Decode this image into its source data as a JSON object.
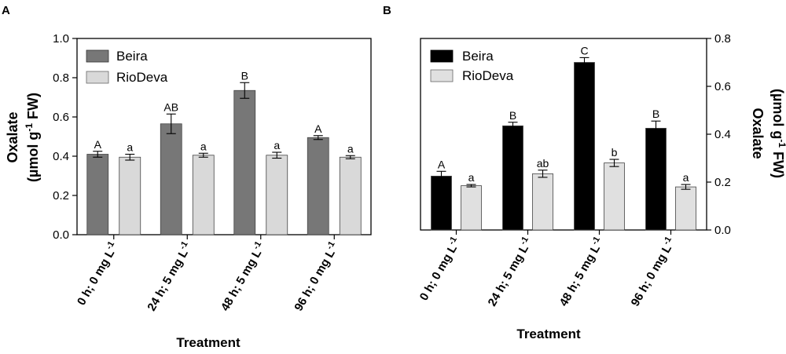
{
  "chart_data": [
    {
      "panel": "A",
      "type": "bar",
      "categories": [
        "0 h; 0 mg L",
        "24 h; 5 mg L",
        "48 h; 5 mg L",
        "96 h; 0 mg L"
      ],
      "category_superscript": "-1",
      "series": [
        {
          "name": "Beira",
          "color": "#777777",
          "values": [
            0.41,
            0.565,
            0.735,
            0.495
          ],
          "errors": [
            0.015,
            0.05,
            0.04,
            0.01
          ],
          "letters": [
            "A",
            "AB",
            "B",
            "A"
          ]
        },
        {
          "name": "RioDeva",
          "color": "#d9d9d9",
          "values": [
            0.395,
            0.405,
            0.405,
            0.395
          ],
          "errors": [
            0.015,
            0.01,
            0.015,
            0.008
          ],
          "letters": [
            "a",
            "a",
            "a",
            "a"
          ]
        }
      ],
      "ylim": [
        0,
        1.0
      ],
      "yticks": [
        "0.0",
        "0.2",
        "0.4",
        "0.6",
        "0.8",
        "1.0"
      ],
      "xlabel": "Treatment",
      "ylabel_line1": "Oxalate",
      "ylabel_line2_pre": "(µmol g",
      "ylabel_line2_sup": "-1",
      "ylabel_line2_post": " FW)",
      "legend": "top-left"
    },
    {
      "panel": "B",
      "type": "bar",
      "categories": [
        "0 h; 0 mg L",
        "24 h; 5 mg L",
        "48 h; 5 mg L",
        "96 h; 0 mg L"
      ],
      "category_superscript": "-1",
      "series": [
        {
          "name": "Beira",
          "color": "#000000",
          "values": [
            0.225,
            0.435,
            0.7,
            0.425
          ],
          "errors": [
            0.02,
            0.015,
            0.02,
            0.03
          ],
          "letters": [
            "A",
            "B",
            "C",
            "B"
          ]
        },
        {
          "name": "RioDeva",
          "color": "#e0e0e0",
          "values": [
            0.185,
            0.235,
            0.28,
            0.18
          ],
          "errors": [
            0.005,
            0.015,
            0.015,
            0.01
          ],
          "letters": [
            "a",
            "ab",
            "b",
            "a"
          ]
        }
      ],
      "ylim": [
        0,
        0.8
      ],
      "yticks": [
        "0.0",
        "0.2",
        "0.4",
        "0.6",
        "0.8"
      ],
      "xlabel": "Treatment",
      "ylabel_line1": "Oxalate",
      "ylabel_line2_pre": "(µmol g",
      "ylabel_line2_sup": "-1",
      "ylabel_line2_post": " FW)",
      "legend": "top-left"
    }
  ]
}
